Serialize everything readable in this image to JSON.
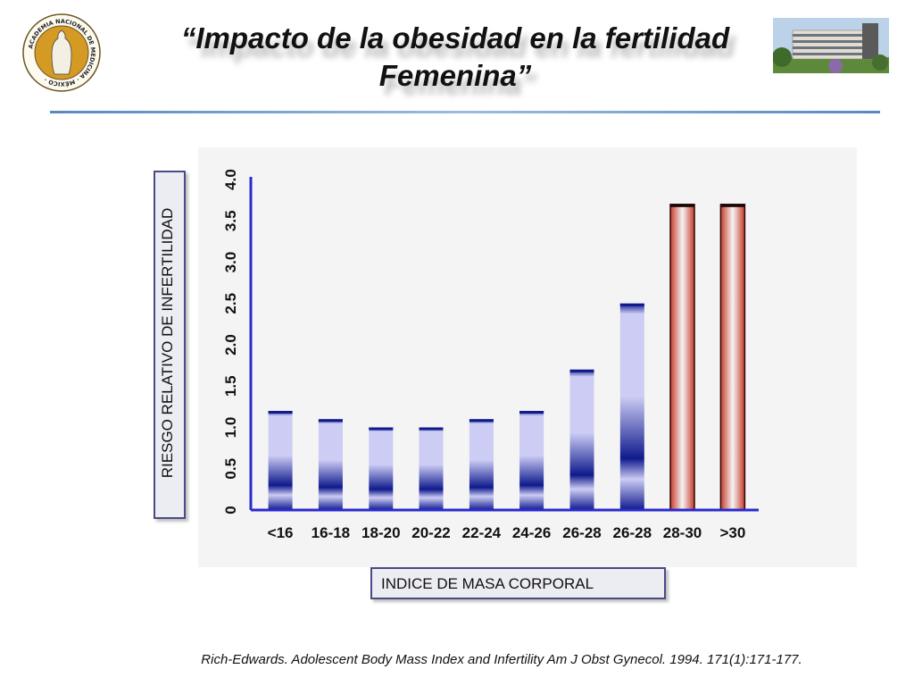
{
  "slide": {
    "title": "“Impacto de la obesidad en la fertilidad Femenina”",
    "source": "Rich-Edwards.  Adolescent Body Mass Index and Infertility Am J Obst Gynecol. 1994.  171(1):171-177."
  },
  "seal": {
    "text": "ACADEMIA NACIONAL DE MEDICINA · MÉXICO",
    "colors": {
      "ring": "#d49a24",
      "center": "#1a1a1a"
    }
  },
  "colors": {
    "axis": "#2a2ad0",
    "bar_blue_dark": "#0f1a8c",
    "bar_blue_light": "#ccccf4",
    "bar_red": "#c83a2a",
    "bar_white": "#f4f4f4",
    "divider": "#5a87c6"
  },
  "chart_data": {
    "type": "bar",
    "xlabel": "INDICE DE MASA CORPORAL",
    "ylabel": "RIESGO RELATIVO DE INFERTILIDAD",
    "ylim": [
      0,
      4.0
    ],
    "yticks": [
      "0",
      "0.5",
      "1.0",
      "1.5",
      "2.0",
      "2.5",
      "3.0",
      "3.5",
      "4.0"
    ],
    "categories": [
      "<16",
      "16-18",
      "18-20",
      "20-22",
      "22-24",
      "24-26",
      "26-28",
      "26-28",
      "28-30",
      ">30"
    ],
    "values": [
      1.2,
      1.1,
      1.0,
      1.0,
      1.1,
      1.2,
      1.7,
      2.5,
      3.7,
      3.7
    ],
    "bar_colors": [
      "blue",
      "blue",
      "blue",
      "blue",
      "blue",
      "blue",
      "blue",
      "blue",
      "red",
      "red"
    ],
    "grid": false
  }
}
